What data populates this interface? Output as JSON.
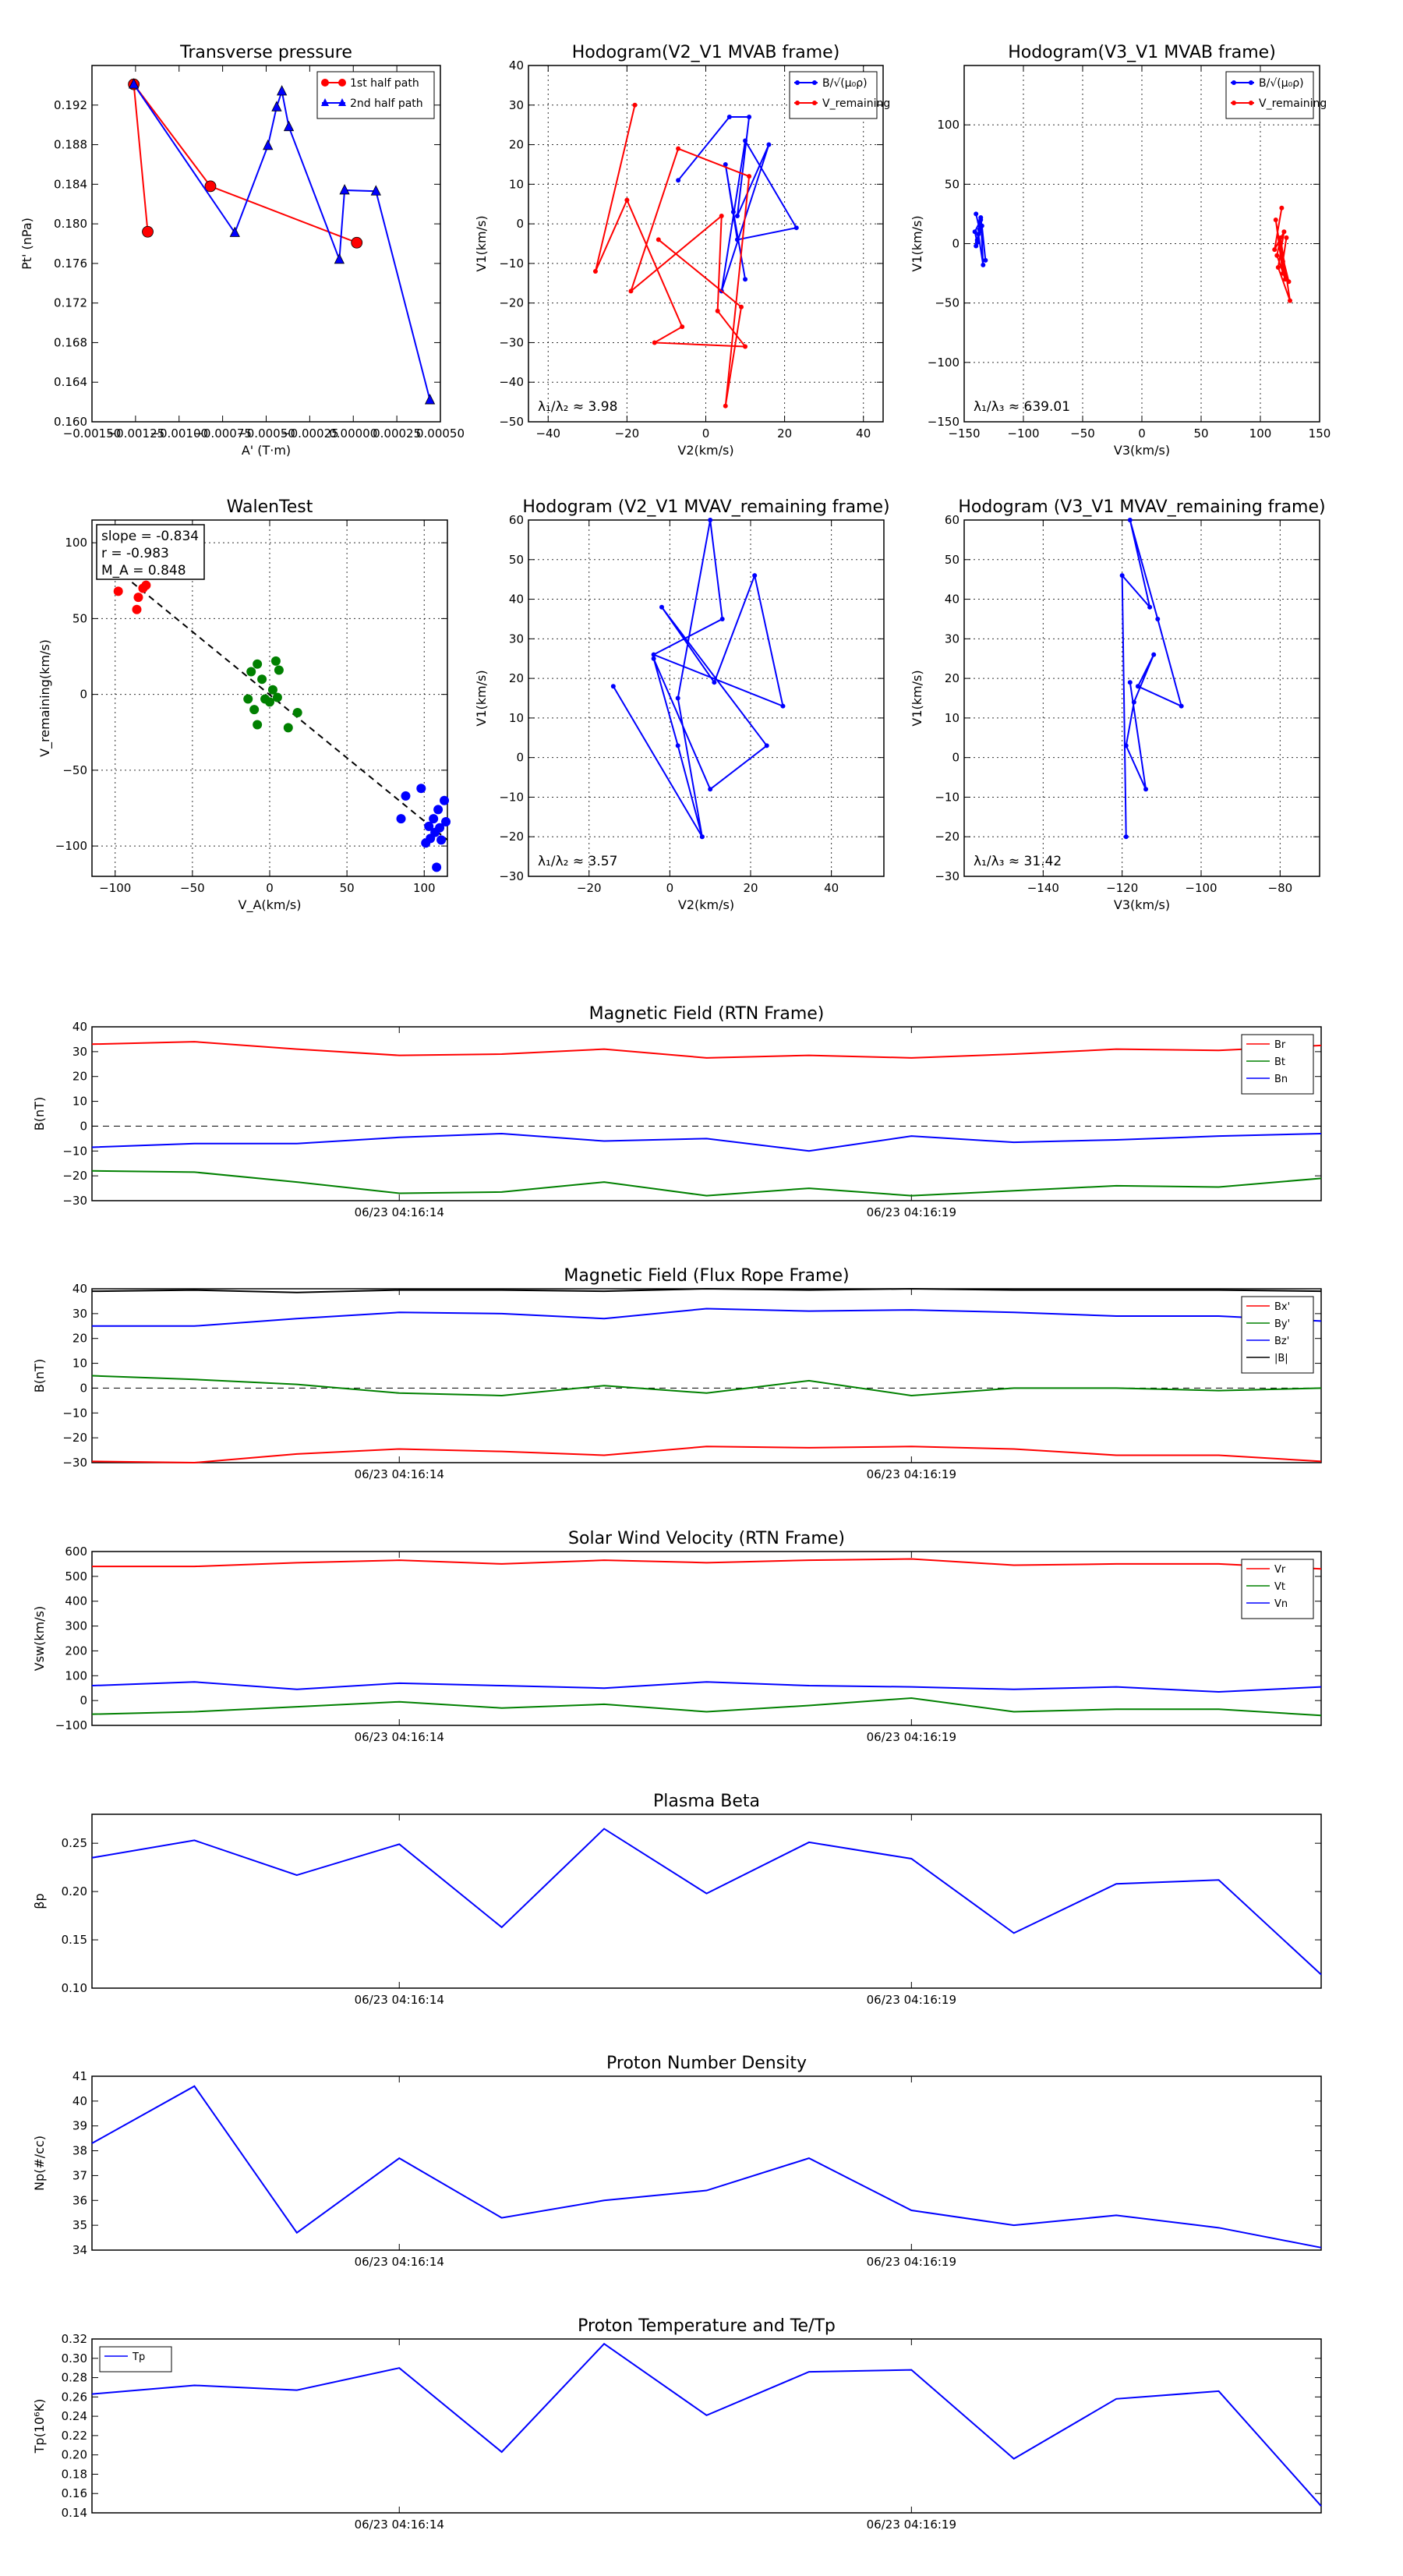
{
  "colors": {
    "red": "#ff0000",
    "green": "#008000",
    "blue": "#0000ff",
    "black": "#000000",
    "grid": "#000000"
  },
  "time_ticks": [
    "06/23 04:16:14",
    "06/23 04:16:19"
  ],
  "time_tick_positions": [
    3,
    8
  ],
  "chart_data": [
    {
      "id": "transverse_pressure",
      "type": "line",
      "title": "Transverse pressure",
      "xlabel": "A' (T·m)",
      "ylabel": "Pt' (nPa)",
      "xlim": [
        -0.0015,
        0.0005
      ],
      "ylim": [
        0.16,
        0.196
      ],
      "xticks": [
        -0.0015,
        -0.00125,
        -0.001,
        -0.00075,
        -0.0005,
        -0.00025,
        0.0,
        0.00025,
        0.0005
      ],
      "xtick_labels": [
        "−0.00150",
        "−0.00125",
        "−0.00100",
        "−0.00075",
        "−0.00050",
        "−0.00025",
        "0.00000",
        "0.00025",
        "0.00050"
      ],
      "yticks": [
        0.16,
        0.164,
        0.168,
        0.172,
        0.176,
        0.18,
        0.184,
        0.188,
        0.192
      ],
      "ytick_labels": [
        "0.160",
        "0.164",
        "0.168",
        "0.172",
        "0.176",
        "0.180",
        "0.184",
        "0.188",
        "0.192"
      ],
      "legend": "top-right",
      "series": [
        {
          "name": "1st half path",
          "color": "red",
          "marker": "circle",
          "x": [
            -0.00118,
            -0.00126,
            -0.00082,
            2e-05
          ],
          "y": [
            0.1792,
            0.1941,
            0.1838,
            0.1781
          ]
        },
        {
          "name": "2nd half path",
          "color": "blue",
          "marker": "triangle",
          "x": [
            -0.00126,
            -0.00068,
            -0.00049,
            -0.00044,
            -0.00041,
            -0.00037,
            -8e-05,
            -5e-05,
            0.00013,
            0.00044
          ],
          "y": [
            0.1941,
            0.1791,
            0.1879,
            0.1918,
            0.1934,
            0.1898,
            0.1764,
            0.1834,
            0.1833,
            0.1622
          ]
        }
      ]
    },
    {
      "id": "hodo_v2v1_mvab",
      "type": "line",
      "title": "Hodogram(V2_V1 MVAB frame)",
      "xlabel": "V2(km/s)",
      "ylabel": "V1(km/s)",
      "xlim": [
        -45,
        45
      ],
      "ylim": [
        -50,
        40
      ],
      "xticks": [
        -40,
        -20,
        0,
        20,
        40
      ],
      "yticks": [
        -50,
        -40,
        -30,
        -20,
        -10,
        0,
        10,
        20,
        30,
        40
      ],
      "annotation": "λ₁/λ₂ ≈ 3.98",
      "legend": "top-right",
      "series": [
        {
          "name": "B/√(μ₀ρ)",
          "color": "blue",
          "x": [
            -7,
            6,
            11,
            8,
            16,
            4,
            10,
            23,
            8,
            5,
            7,
            10
          ],
          "y": [
            11,
            27,
            27,
            2,
            20,
            -17,
            21,
            -1,
            -4,
            15,
            3,
            -14
          ]
        },
        {
          "name": "V_remaining",
          "color": "red",
          "x": [
            -18,
            -28,
            -20,
            -6,
            -13,
            10,
            3,
            4,
            -19,
            -7,
            11,
            5,
            9,
            -12
          ],
          "y": [
            30,
            -12,
            6,
            -26,
            -30,
            -31,
            -22,
            2,
            -17,
            19,
            12,
            -46,
            -21,
            -4
          ]
        }
      ]
    },
    {
      "id": "hodo_v3v1_mvab",
      "type": "line",
      "title": "Hodogram(V3_V1 MVAB frame)",
      "xlabel": "V3(km/s)",
      "ylabel": "V1(km/s)",
      "xlim": [
        -150,
        150
      ],
      "ylim": [
        -150,
        150
      ],
      "xticks": [
        -150,
        -100,
        -50,
        0,
        50,
        100,
        150
      ],
      "yticks": [
        -150,
        -100,
        -50,
        0,
        50,
        100
      ],
      "annotation": "λ₁/λ₃ ≈ 639.01",
      "legend": "top-right",
      "series": [
        {
          "name": "B/√(μ₀ρ)",
          "color": "blue",
          "x": [
            -140,
            -137,
            -139,
            -136,
            -134,
            -138,
            -140,
            -135,
            -132,
            -136,
            -139,
            -141,
            -137
          ],
          "y": [
            25,
            12,
            3,
            20,
            -18,
            8,
            -2,
            15,
            -14,
            22,
            1,
            10,
            18
          ]
        },
        {
          "name": "V_remaining",
          "color": "red",
          "x": [
            118,
            112,
            120,
            115,
            125,
            117,
            119,
            113,
            121,
            114,
            116,
            124,
            119,
            122
          ],
          "y": [
            30,
            -5,
            10,
            -20,
            -48,
            5,
            -25,
            20,
            -30,
            -10,
            0,
            -32,
            -15,
            5
          ]
        }
      ]
    },
    {
      "id": "walen_test",
      "type": "scatter",
      "title": "WalenTest",
      "xlabel": "V_A(km/s)",
      "ylabel": "V_remaining(km/s)",
      "xlim": [
        -115,
        115
      ],
      "ylim": [
        -120,
        115
      ],
      "xticks": [
        -100,
        -50,
        0,
        50,
        100
      ],
      "yticks": [
        -100,
        -50,
        0,
        50,
        100
      ],
      "stats": [
        "slope = -0.834",
        "r = -0.983",
        "M_A = 0.848"
      ],
      "fit_line": {
        "x": [
          -100,
          115
        ],
        "y": [
          83,
          -96
        ]
      },
      "series": [
        {
          "name": "red",
          "color": "red",
          "x": [
            -98,
            -85,
            -86,
            -82,
            -80
          ],
          "y": [
            68,
            64,
            56,
            70,
            72
          ]
        },
        {
          "name": "green",
          "color": "green",
          "x": [
            -12,
            -8,
            -5,
            0,
            2,
            4,
            6,
            -10,
            -3,
            12,
            18,
            -8,
            5,
            -14
          ],
          "y": [
            15,
            20,
            10,
            -5,
            3,
            22,
            16,
            -10,
            -3,
            -22,
            -12,
            -20,
            -2,
            -3
          ]
        },
        {
          "name": "blue",
          "color": "blue",
          "x": [
            85,
            88,
            98,
            103,
            106,
            109,
            111,
            113,
            114,
            108,
            104,
            101,
            110,
            107
          ],
          "y": [
            -82,
            -67,
            -62,
            -87,
            -82,
            -76,
            -96,
            -70,
            -84,
            -114,
            -95,
            -98,
            -88,
            -91
          ]
        }
      ]
    },
    {
      "id": "hodo_v2v1_mvav",
      "type": "line",
      "title": "Hodogram (V2_V1 MVAV_remaining frame)",
      "xlabel": "V2(km/s)",
      "ylabel": "V1(km/s)",
      "xlim": [
        -35,
        53
      ],
      "ylim": [
        -30,
        60
      ],
      "xticks": [
        -20,
        0,
        20,
        40
      ],
      "yticks": [
        -30,
        -20,
        -10,
        0,
        10,
        20,
        30,
        40,
        50,
        60
      ],
      "annotation": "λ₁/λ₂ ≈ 3.57",
      "series": [
        {
          "name": "V",
          "color": "blue",
          "x": [
            -14,
            8,
            2,
            10,
            13,
            -4,
            28,
            21,
            11,
            -2,
            24,
            10,
            -4,
            2,
            8
          ],
          "y": [
            18,
            -20,
            15,
            60,
            35,
            26,
            13,
            46,
            19,
            38,
            3,
            -8,
            25,
            3,
            -20
          ]
        }
      ]
    },
    {
      "id": "hodo_v3v1_mvav",
      "type": "line",
      "title": "Hodogram (V3_V1 MVAV_remaining frame)",
      "xlabel": "V3(km/s)",
      "ylabel": "V1(km/s)",
      "xlim": [
        -160,
        -70
      ],
      "ylim": [
        -30,
        60
      ],
      "xticks": [
        -140,
        -120,
        -100,
        -80
      ],
      "yticks": [
        -30,
        -20,
        -10,
        0,
        10,
        20,
        30,
        40,
        50,
        60
      ],
      "annotation": "λ₁/λ₃ ≈ 31.42",
      "series": [
        {
          "name": "V",
          "color": "blue",
          "x": [
            -119,
            -120,
            -113,
            -118,
            -111,
            -105,
            -116,
            -112,
            -117,
            -119,
            -114,
            -118
          ],
          "y": [
            -20,
            46,
            38,
            60,
            35,
            13,
            18,
            26,
            14,
            3,
            -8,
            19
          ]
        }
      ]
    },
    {
      "id": "mag_rtn",
      "type": "line",
      "title": "Magnetic Field (RTN Frame)",
      "xlabel": "",
      "ylabel": "B(nT)",
      "ylim": [
        -30,
        40
      ],
      "yticks": [
        -30,
        -20,
        -10,
        0,
        10,
        20,
        30,
        40
      ],
      "zero_line": true,
      "legend": "top-right",
      "x": [
        0,
        1,
        2,
        3,
        4,
        5,
        6,
        7,
        8,
        9,
        10,
        11,
        12
      ],
      "series": [
        {
          "name": "Br",
          "color": "red",
          "values": [
            33,
            34,
            31,
            28.5,
            29,
            31,
            27.5,
            28.5,
            27.5,
            29,
            31,
            30.5,
            32.5
          ]
        },
        {
          "name": "Bt",
          "color": "green",
          "values": [
            -18,
            -18.5,
            -22.5,
            -27,
            -26.5,
            -22.5,
            -28,
            -25,
            -28,
            -26,
            -24,
            -24.5,
            -21
          ]
        },
        {
          "name": "Bn",
          "color": "blue",
          "values": [
            -8.5,
            -7,
            -7,
            -4.5,
            -3,
            -6,
            -5,
            -10,
            -4,
            -6.5,
            -5.5,
            -4,
            -3
          ]
        }
      ]
    },
    {
      "id": "mag_flux_rope",
      "type": "line",
      "title": "Magnetic Field (Flux Rope Frame)",
      "xlabel": "",
      "ylabel": "B(nT)",
      "ylim": [
        -30,
        40
      ],
      "yticks": [
        -30,
        -20,
        -10,
        0,
        10,
        20,
        30,
        40
      ],
      "zero_line": true,
      "legend": "top-right",
      "x": [
        0,
        1,
        2,
        3,
        4,
        5,
        6,
        7,
        8,
        9,
        10,
        11,
        12
      ],
      "series": [
        {
          "name": "Bx'",
          "color": "red",
          "values": [
            -29.5,
            -30,
            -26.5,
            -24.5,
            -25.5,
            -27,
            -23.5,
            -24,
            -23.5,
            -24.5,
            -27,
            -27,
            -29.5
          ]
        },
        {
          "name": "By'",
          "color": "green",
          "values": [
            5,
            3.5,
            1.5,
            -2,
            -3,
            1,
            -2,
            3,
            -3,
            0,
            0,
            -1,
            0
          ]
        },
        {
          "name": "Bz'",
          "color": "blue",
          "values": [
            25,
            25,
            28,
            30.5,
            30,
            28,
            32,
            31,
            31.5,
            30.5,
            29,
            29,
            27
          ]
        },
        {
          "name": "|B|",
          "color": "black",
          "values": [
            39,
            39.5,
            38.5,
            39.5,
            39.5,
            39,
            40,
            39.5,
            40,
            39.5,
            39.5,
            39.5,
            39
          ]
        }
      ]
    },
    {
      "id": "sw_velocity",
      "type": "line",
      "title": "Solar Wind Velocity (RTN Frame)",
      "xlabel": "",
      "ylabel": "Vsw(km/s)",
      "ylim": [
        -100,
        600
      ],
      "yticks": [
        -100,
        0,
        100,
        200,
        300,
        400,
        500,
        600
      ],
      "legend": "top-right",
      "x": [
        0,
        1,
        2,
        3,
        4,
        5,
        6,
        7,
        8,
        9,
        10,
        11,
        12
      ],
      "series": [
        {
          "name": "Vr",
          "color": "red",
          "values": [
            540,
            540,
            555,
            565,
            550,
            565,
            555,
            565,
            570,
            545,
            550,
            550,
            530
          ]
        },
        {
          "name": "Vt",
          "color": "green",
          "values": [
            -55,
            -45,
            -25,
            -5,
            -30,
            -15,
            -45,
            -20,
            10,
            -45,
            -35,
            -35,
            -60
          ]
        },
        {
          "name": "Vn",
          "color": "blue",
          "values": [
            60,
            75,
            45,
            70,
            60,
            50,
            75,
            60,
            55,
            45,
            55,
            35,
            55
          ]
        }
      ]
    },
    {
      "id": "plasma_beta",
      "type": "line",
      "title": "Plasma Beta",
      "xlabel": "",
      "ylabel": "βp",
      "ylim": [
        0.1,
        0.28
      ],
      "yticks": [
        0.1,
        0.15,
        0.2,
        0.25
      ],
      "ytick_labels": [
        "0.10",
        "0.15",
        "0.20",
        "0.25"
      ],
      "x": [
        0,
        1,
        2,
        3,
        4,
        5,
        6,
        7,
        8,
        9,
        10,
        11,
        12
      ],
      "series": [
        {
          "name": "beta",
          "color": "blue",
          "values": [
            0.235,
            0.253,
            0.217,
            0.249,
            0.163,
            0.265,
            0.198,
            0.251,
            0.234,
            0.157,
            0.208,
            0.212,
            0.114
          ]
        }
      ]
    },
    {
      "id": "proton_density",
      "type": "line",
      "title": "Proton Number Density",
      "xlabel": "",
      "ylabel": "Np(#/cc)",
      "ylim": [
        34,
        41
      ],
      "yticks": [
        34,
        35,
        36,
        37,
        38,
        39,
        40,
        41
      ],
      "x": [
        0,
        1,
        2,
        3,
        4,
        5,
        6,
        7,
        8,
        9,
        10,
        11,
        12
      ],
      "series": [
        {
          "name": "Np",
          "color": "blue",
          "values": [
            38.3,
            40.6,
            34.7,
            37.7,
            35.3,
            36.0,
            36.4,
            37.7,
            35.6,
            35.0,
            35.4,
            34.9,
            34.1
          ]
        }
      ]
    },
    {
      "id": "proton_temperature",
      "type": "line",
      "title": "Proton Temperature and Te/Tp",
      "xlabel": "",
      "ylabel": "Tp(10⁶K)",
      "ylim": [
        0.14,
        0.32
      ],
      "yticks": [
        0.14,
        0.16,
        0.18,
        0.2,
        0.22,
        0.24,
        0.26,
        0.28,
        0.3,
        0.32
      ],
      "ytick_labels": [
        "0.14",
        "0.16",
        "0.18",
        "0.20",
        "0.22",
        "0.24",
        "0.26",
        "0.28",
        "0.30",
        "0.32"
      ],
      "legend": "top-left",
      "x": [
        0,
        1,
        2,
        3,
        4,
        5,
        6,
        7,
        8,
        9,
        10,
        11,
        12
      ],
      "series": [
        {
          "name": "Tp",
          "color": "blue",
          "values": [
            0.263,
            0.272,
            0.267,
            0.29,
            0.203,
            0.315,
            0.241,
            0.286,
            0.288,
            0.196,
            0.258,
            0.266,
            0.147
          ]
        }
      ]
    }
  ]
}
